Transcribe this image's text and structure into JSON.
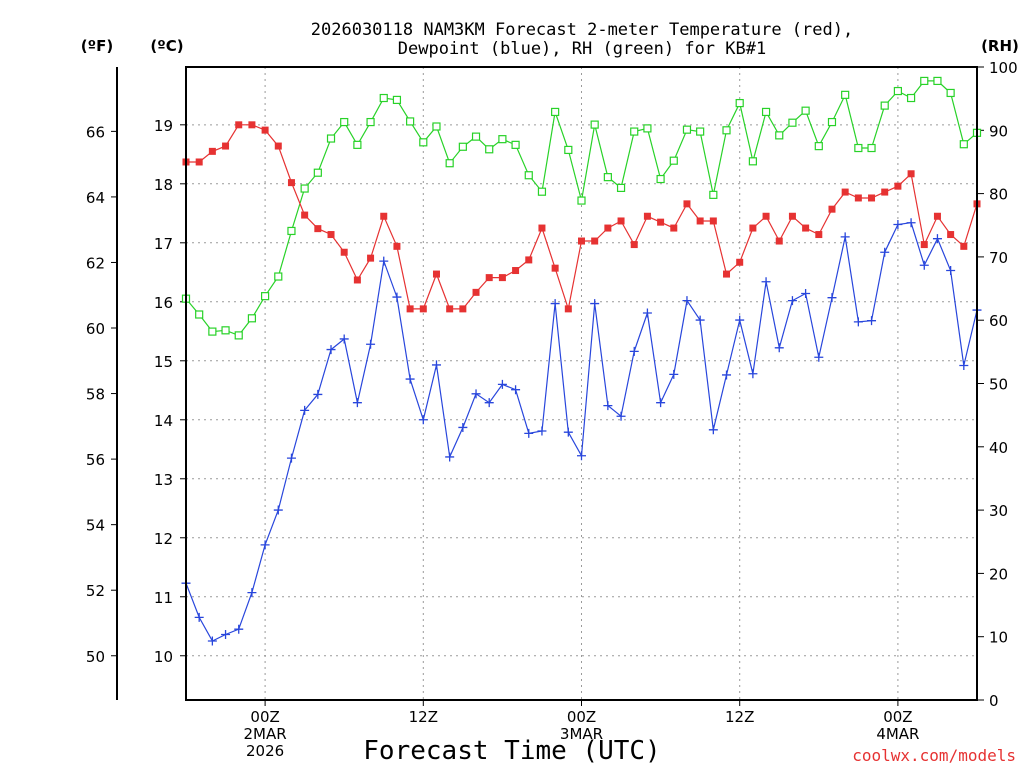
{
  "chart_data": {
    "type": "line",
    "title_lines": [
      "2026030118 NAM3KM Forecast 2-meter Temperature (red),",
      "Dewpoint (blue), RH (green) for KB#1"
    ],
    "xlabel": "Forecast Time (UTC)",
    "credit": "coolwx.com/models",
    "x_ticks": [
      {
        "hour": 6,
        "lines": [
          "00Z",
          "2MAR",
          "2026"
        ]
      },
      {
        "hour": 18,
        "lines": [
          "12Z"
        ]
      },
      {
        "hour": 30,
        "lines": [
          "00Z",
          "3MAR"
        ]
      },
      {
        "hour": 42,
        "lines": [
          "12Z"
        ]
      },
      {
        "hour": 54,
        "lines": [
          "00Z",
          "4MAR"
        ]
      }
    ],
    "x_range_hours": [
      0,
      60
    ],
    "y_axes": {
      "celsius": {
        "unit_label": "(ºC)",
        "range": [
          9.25,
          19.98
        ],
        "ticks": [
          10,
          11,
          12,
          13,
          14,
          15,
          16,
          17,
          18,
          19
        ]
      },
      "fahrenheit": {
        "unit_label": "(ºF)",
        "ticks": [
          50,
          52,
          54,
          56,
          58,
          60,
          62,
          64,
          66
        ]
      },
      "rh": {
        "unit_label": "(RH)",
        "range": [
          0,
          100
        ],
        "ticks": [
          0,
          10,
          20,
          30,
          40,
          50,
          60,
          70,
          80,
          90,
          100
        ]
      }
    },
    "grid": true,
    "series": [
      {
        "name": "Temperature",
        "color": "#e63232",
        "marker": "filled-square",
        "axis": "celsius",
        "values": [
          18.37,
          18.37,
          18.55,
          18.64,
          19.0,
          19.0,
          18.91,
          18.64,
          18.02,
          17.47,
          17.24,
          17.14,
          16.84,
          16.37,
          16.74,
          17.45,
          16.94,
          15.88,
          15.88,
          16.47,
          15.88,
          15.88,
          16.16,
          16.41,
          16.41,
          16.53,
          16.71,
          17.25,
          16.57,
          15.88,
          17.03,
          17.03,
          17.25,
          17.37,
          16.97,
          17.45,
          17.35,
          17.25,
          17.66,
          17.37,
          17.37,
          16.47,
          16.67,
          17.25,
          17.45,
          17.03,
          17.45,
          17.25,
          17.14,
          17.57,
          17.86,
          17.76,
          17.76,
          17.86,
          17.96,
          18.17,
          16.97,
          17.45,
          17.14,
          16.94,
          17.66
        ]
      },
      {
        "name": "Dewpoint",
        "color": "#2846dc",
        "marker": "plus",
        "axis": "celsius",
        "values": [
          11.23,
          10.65,
          10.25,
          10.36,
          10.45,
          11.07,
          11.88,
          12.47,
          13.35,
          14.16,
          14.43,
          15.19,
          15.37,
          14.29,
          15.28,
          16.69,
          16.08,
          14.69,
          14.0,
          14.93,
          13.37,
          13.87,
          14.44,
          14.29,
          14.6,
          14.51,
          13.77,
          13.81,
          15.97,
          13.79,
          13.39,
          15.97,
          14.24,
          14.06,
          15.16,
          15.81,
          14.29,
          14.77,
          16.02,
          15.69,
          13.83,
          14.76,
          15.69,
          14.78,
          16.34,
          15.22,
          16.02,
          16.14,
          15.06,
          16.07,
          17.1,
          15.66,
          15.68,
          16.84,
          17.31,
          17.34,
          16.62,
          17.07,
          16.53,
          14.92,
          15.86
        ]
      },
      {
        "name": "RH",
        "color": "#28d228",
        "marker": "open-square",
        "axis": "rh",
        "values": [
          63.4,
          60.9,
          58.2,
          58.4,
          57.6,
          60.3,
          63.8,
          66.9,
          74.1,
          80.8,
          83.3,
          88.7,
          91.3,
          87.7,
          91.3,
          95.1,
          94.8,
          91.4,
          88.1,
          90.6,
          84.8,
          87.4,
          89.0,
          87.0,
          88.6,
          87.7,
          82.9,
          80.3,
          92.9,
          86.9,
          78.9,
          90.9,
          82.6,
          80.9,
          89.8,
          90.3,
          82.3,
          85.2,
          90.1,
          89.8,
          79.8,
          90.0,
          94.3,
          85.1,
          92.9,
          89.2,
          91.2,
          93.1,
          87.5,
          91.3,
          95.6,
          87.2,
          87.2,
          93.9,
          96.2,
          95.1,
          97.8,
          97.8,
          95.9,
          87.8,
          89.6
        ]
      }
    ]
  }
}
